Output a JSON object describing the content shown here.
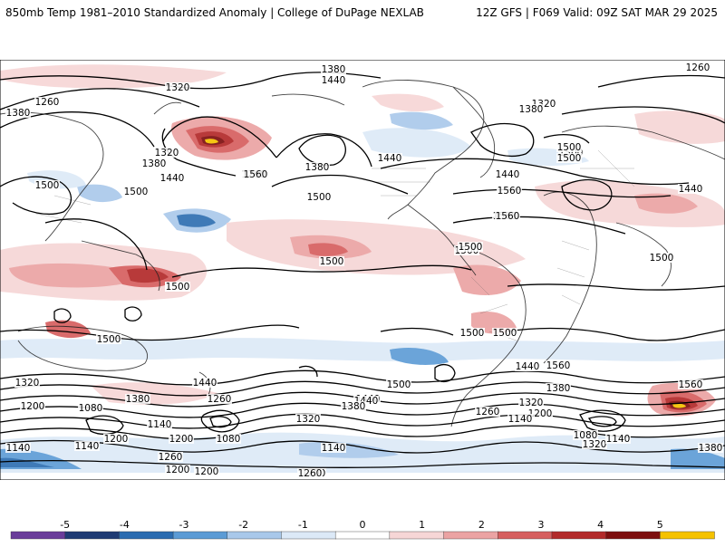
{
  "header": {
    "title": "850mb Temp 1981–2010 Standardized Anomaly | College of DuPage NEXLAB",
    "valid": "12Z GFS | F069 Valid: 09Z SAT MAR 29 2025"
  },
  "colorbar": {
    "ticks": [
      "-5",
      "-4",
      "-3",
      "-2",
      "-1",
      "0",
      "1",
      "2",
      "3",
      "4",
      "5"
    ],
    "colors": [
      "#6a3d9a",
      "#1f3b73",
      "#2b6cb0",
      "#5b9bd5",
      "#a9c8ea",
      "#dce9f7",
      "#ffffff",
      "#f6d6d6",
      "#eba3a3",
      "#d65f5f",
      "#b22a2a",
      "#7d0f0f",
      "#f5c200"
    ]
  },
  "contour_labels": [
    "1380",
    "1440",
    "1320",
    "1260",
    "1380",
    "1320",
    "1380",
    "1440",
    "1260",
    "1560",
    "1380",
    "1500",
    "1440",
    "1500",
    "1500",
    "1320",
    "1500",
    "1260",
    "1380",
    "1440",
    "1500",
    "1500",
    "1560",
    "1440",
    "1560",
    "1500",
    "1560",
    "1500",
    "1500",
    "1500",
    "1500",
    "1500",
    "1500",
    "1500",
    "1500",
    "1500",
    "1320",
    "1500",
    "1440",
    "1500",
    "1440",
    "1560",
    "1440",
    "1380",
    "1560",
    "1200",
    "1380",
    "1260",
    "1440",
    "1380",
    "1320",
    "1260",
    "1200",
    "1320",
    "1080",
    "1140",
    "1200",
    "1140",
    "1080",
    "1200",
    "1140",
    "1140",
    "1080",
    "1140",
    "1260",
    "1200",
    "1320",
    "1200",
    "1200",
    "1140",
    "1380",
    "1260"
  ],
  "colors": {
    "land_line": "#222222",
    "contour": "#000000",
    "warm1": "#f6d6d6",
    "warm2": "#eba3a3",
    "warm3": "#d65f5f",
    "warm4": "#b22a2a",
    "warm5": "#7d0f0f",
    "extreme": "#f5c200",
    "cool1": "#dce9f7",
    "cool2": "#a9c8ea",
    "cool3": "#5b9bd5",
    "cool4": "#2b6cb0",
    "cool5": "#1f3b73"
  }
}
